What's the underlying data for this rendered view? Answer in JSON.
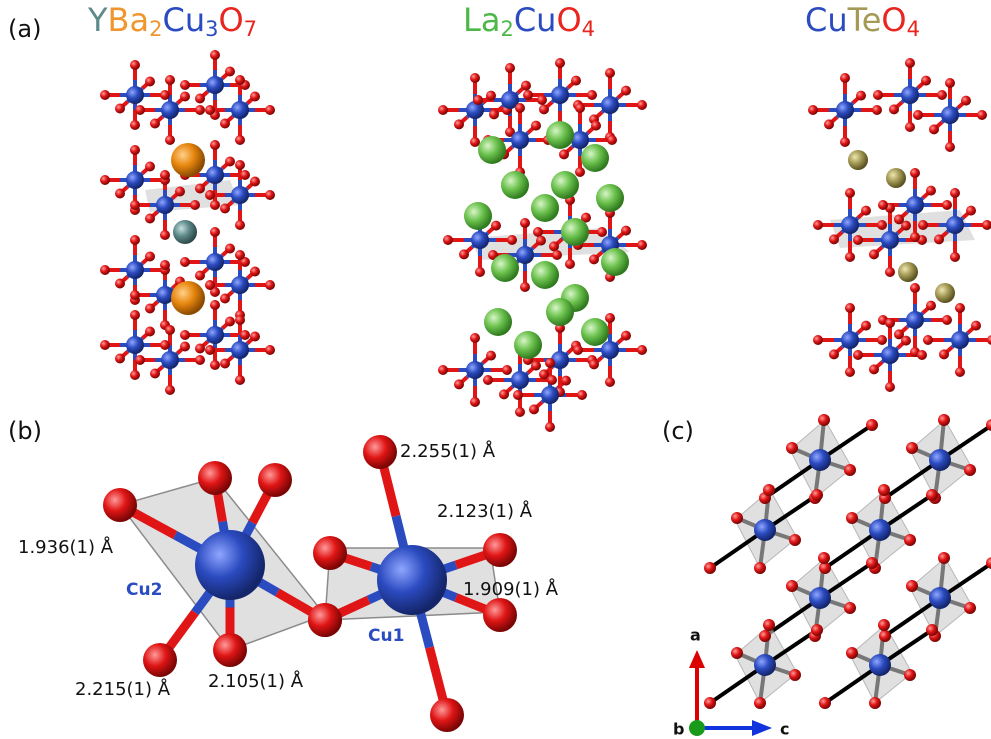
{
  "panels": {
    "a": {
      "label": "(a)",
      "structures": [
        {
          "formula": [
            {
              "text": "Y",
              "color": "#5f8a8a"
            },
            {
              "text": "Ba",
              "color": "#f0962e"
            },
            {
              "text": "2",
              "color": "#f0962e",
              "sub": true
            },
            {
              "text": "Cu",
              "color": "#2b4bc0"
            },
            {
              "text": "3",
              "color": "#2b4bc0",
              "sub": true
            },
            {
              "text": "O",
              "color": "#e8251f"
            },
            {
              "text": "7",
              "color": "#e8251f",
              "sub": true
            }
          ]
        },
        {
          "formula": [
            {
              "text": "La",
              "color": "#4db848"
            },
            {
              "text": "2",
              "color": "#4db848",
              "sub": true
            },
            {
              "text": "Cu",
              "color": "#2b4bc0"
            },
            {
              "text": "O",
              "color": "#e8251f"
            },
            {
              "text": "4",
              "color": "#e8251f",
              "sub": true
            }
          ]
        },
        {
          "formula": [
            {
              "text": "Cu",
              "color": "#2b4bc0"
            },
            {
              "text": "Te",
              "color": "#a49a56"
            },
            {
              "text": "O",
              "color": "#e8251f"
            },
            {
              "text": "4",
              "color": "#e8251f",
              "sub": true
            }
          ]
        }
      ]
    },
    "b": {
      "label": "(b)",
      "sites": [
        "Cu2",
        "Cu1"
      ],
      "bonds": [
        "2.255(1) Å",
        "2.123(1) Å",
        "1.936(1) Å",
        "1.909(1) Å",
        "2.215(1) Å",
        "2.105(1) Å"
      ]
    },
    "c": {
      "label": "(c)",
      "axes": [
        "a",
        "b",
        "c"
      ]
    }
  }
}
